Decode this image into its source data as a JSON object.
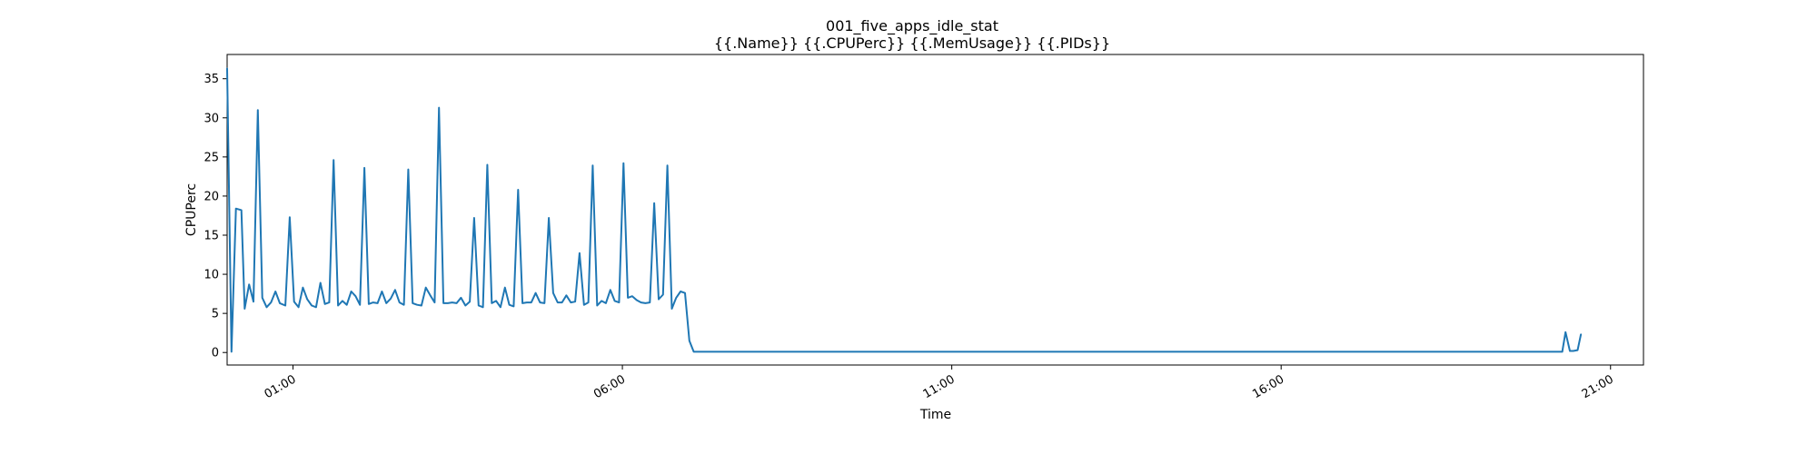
{
  "chart_data": {
    "type": "line",
    "title": "001_five_apps_idle_stat",
    "subtitle": "{{.Name}} {{.CPUPerc}} {{.MemUsage}}  {{.PIDs}}",
    "xlabel": "Time",
    "ylabel": "CPUPerc",
    "x_type": "time",
    "xlim": [
      "00:00",
      "21:30"
    ],
    "ylim": [
      -1.6,
      38.1
    ],
    "x_ticks": [
      "01:00",
      "06:00",
      "11:00",
      "16:00",
      "21:00"
    ],
    "y_ticks": [
      0,
      5,
      10,
      15,
      20,
      25,
      30,
      35
    ],
    "grid": false,
    "series": [
      {
        "color": "#1f77b4",
        "points": [
          [
            "00:00",
            36.3
          ],
          [
            "00:04",
            0.1
          ],
          [
            "00:08",
            18.4
          ],
          [
            "00:13",
            18.2
          ],
          [
            "00:16",
            5.6
          ],
          [
            "00:20",
            8.7
          ],
          [
            "00:24",
            6.5
          ],
          [
            "00:28",
            31.0
          ],
          [
            "00:32",
            7.0
          ],
          [
            "00:36",
            5.8
          ],
          [
            "00:40",
            6.4
          ],
          [
            "00:44",
            7.8
          ],
          [
            "00:48",
            6.3
          ],
          [
            "00:53",
            6.0
          ],
          [
            "00:57",
            17.3
          ],
          [
            "01:01",
            6.5
          ],
          [
            "01:05",
            5.8
          ],
          [
            "01:09",
            8.3
          ],
          [
            "01:13",
            6.8
          ],
          [
            "01:17",
            6.0
          ],
          [
            "01:21",
            5.8
          ],
          [
            "01:25",
            8.9
          ],
          [
            "01:29",
            6.2
          ],
          [
            "01:33",
            6.4
          ],
          [
            "01:37",
            24.6
          ],
          [
            "01:41",
            6.0
          ],
          [
            "01:45",
            6.6
          ],
          [
            "01:49",
            6.1
          ],
          [
            "01:53",
            7.8
          ],
          [
            "01:57",
            7.2
          ],
          [
            "02:01",
            6.1
          ],
          [
            "02:05",
            23.6
          ],
          [
            "02:09",
            6.2
          ],
          [
            "02:13",
            6.4
          ],
          [
            "02:17",
            6.3
          ],
          [
            "02:21",
            7.8
          ],
          [
            "02:25",
            6.3
          ],
          [
            "02:29",
            6.9
          ],
          [
            "02:33",
            8.0
          ],
          [
            "02:37",
            6.4
          ],
          [
            "02:41",
            6.1
          ],
          [
            "02:45",
            23.4
          ],
          [
            "02:49",
            6.3
          ],
          [
            "02:53",
            6.1
          ],
          [
            "02:57",
            6.0
          ],
          [
            "03:01",
            8.3
          ],
          [
            "03:05",
            7.3
          ],
          [
            "03:09",
            6.4
          ],
          [
            "03:13",
            31.3
          ],
          [
            "03:17",
            6.3
          ],
          [
            "03:21",
            6.3
          ],
          [
            "03:25",
            6.4
          ],
          [
            "03:29",
            6.3
          ],
          [
            "03:33",
            7.0
          ],
          [
            "03:37",
            6.0
          ],
          [
            "03:41",
            6.5
          ],
          [
            "03:45",
            17.2
          ],
          [
            "03:49",
            6.0
          ],
          [
            "03:53",
            5.8
          ],
          [
            "03:57",
            24.0
          ],
          [
            "04:01",
            6.3
          ],
          [
            "04:05",
            6.6
          ],
          [
            "04:09",
            5.8
          ],
          [
            "04:13",
            8.3
          ],
          [
            "04:17",
            6.1
          ],
          [
            "04:21",
            5.9
          ],
          [
            "04:25",
            20.8
          ],
          [
            "04:29",
            6.3
          ],
          [
            "04:33",
            6.4
          ],
          [
            "04:37",
            6.4
          ],
          [
            "04:41",
            7.6
          ],
          [
            "04:45",
            6.4
          ],
          [
            "04:49",
            6.3
          ],
          [
            "04:53",
            17.2
          ],
          [
            "04:57",
            7.6
          ],
          [
            "05:01",
            6.4
          ],
          [
            "05:05",
            6.4
          ],
          [
            "05:09",
            7.3
          ],
          [
            "05:13",
            6.4
          ],
          [
            "05:17",
            6.5
          ],
          [
            "05:21",
            12.7
          ],
          [
            "05:25",
            6.1
          ],
          [
            "05:29",
            6.4
          ],
          [
            "05:33",
            23.9
          ],
          [
            "05:37",
            6.0
          ],
          [
            "05:41",
            6.6
          ],
          [
            "05:45",
            6.3
          ],
          [
            "05:49",
            8.0
          ],
          [
            "05:53",
            6.6
          ],
          [
            "05:57",
            6.4
          ],
          [
            "06:01",
            24.2
          ],
          [
            "06:05",
            7.0
          ],
          [
            "06:09",
            7.2
          ],
          [
            "06:13",
            6.7
          ],
          [
            "06:17",
            6.4
          ],
          [
            "06:21",
            6.3
          ],
          [
            "06:25",
            6.4
          ],
          [
            "06:29",
            19.1
          ],
          [
            "06:33",
            6.8
          ],
          [
            "06:37",
            7.4
          ],
          [
            "06:41",
            23.9
          ],
          [
            "06:45",
            5.6
          ],
          [
            "06:49",
            7.0
          ],
          [
            "06:53",
            7.8
          ],
          [
            "06:57",
            7.6
          ],
          [
            "07:01",
            1.5
          ],
          [
            "07:05",
            0.1
          ],
          [
            "07:15",
            0.1
          ],
          [
            "09:00",
            0.1
          ],
          [
            "12:00",
            0.1
          ],
          [
            "15:00",
            0.1
          ],
          [
            "18:00",
            0.1
          ],
          [
            "20:16",
            0.1
          ],
          [
            "20:19",
            2.6
          ],
          [
            "20:23",
            0.2
          ],
          [
            "20:26",
            0.2
          ],
          [
            "20:30",
            0.3
          ],
          [
            "20:33",
            2.3
          ]
        ]
      }
    ]
  }
}
